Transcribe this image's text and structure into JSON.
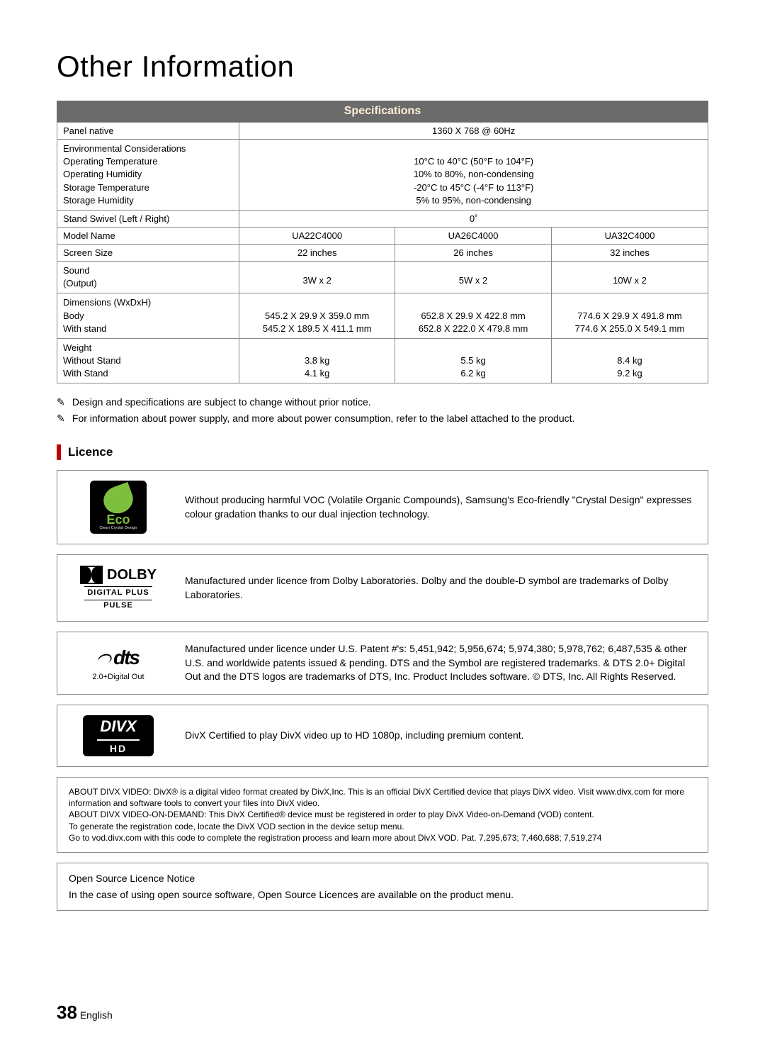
{
  "page": {
    "title": "Other Information",
    "section_header": "Specifications",
    "page_number": "38",
    "page_lang": "English"
  },
  "spec_table": {
    "rows": {
      "panel_native": {
        "label": "Panel native",
        "value": "1360 X 768 @ 60Hz"
      },
      "env": {
        "label_main": "Environmental Considerations",
        "labels": [
          "Operating Temperature",
          "Operating Humidity",
          "Storage Temperature",
          "Storage Humidity"
        ],
        "values": [
          "10°C to 40°C (50°F to 104°F)",
          "10% to 80%, non-condensing",
          "-20°C to 45°C (-4°F to 113°F)",
          "5% to 95%, non-condensing"
        ]
      },
      "swivel": {
        "label": "Stand Swivel (Left / Right)",
        "value": "0˚"
      },
      "model": {
        "label": "Model Name",
        "cols": [
          "UA22C4000",
          "UA26C4000",
          "UA32C4000"
        ]
      },
      "screen": {
        "label": "Screen Size",
        "cols": [
          "22 inches",
          "26 inches",
          "32 inches"
        ]
      },
      "sound": {
        "label_main": "Sound",
        "label_sub": "(Output)",
        "cols": [
          "3W x 2",
          "5W x 2",
          "10W x 2"
        ]
      },
      "dims": {
        "label_main": "Dimensions (WxDxH)",
        "labels": [
          "Body",
          "With stand"
        ],
        "cols": [
          [
            "545.2 X 29.9 X 359.0 mm",
            "545.2 X 189.5 X 411.1 mm"
          ],
          [
            "652.8 X 29.9 X 422.8 mm",
            "652.8 X 222.0 X 479.8 mm"
          ],
          [
            "774.6 X 29.9 X 491.8 mm",
            "774.6 X 255.0 X 549.1 mm"
          ]
        ]
      },
      "weight": {
        "label_main": "Weight",
        "labels": [
          "Without Stand",
          "With Stand"
        ],
        "cols": [
          [
            "3.8 kg",
            "4.1 kg"
          ],
          [
            "5.5 kg",
            "6.2 kg"
          ],
          [
            "8.4 kg",
            "9.2 kg"
          ]
        ]
      }
    }
  },
  "notes": {
    "icon": "✎",
    "items": [
      "Design and specifications are subject to change without prior notice.",
      "For information about power supply, and more about power consumption, refer to the label attached to the product."
    ]
  },
  "licence": {
    "heading": "Licence",
    "eco": {
      "logo_text": "Eco",
      "logo_sub": "Clean Crystal Design",
      "text": "Without producing harmful VOC (Volatile Organic Compounds), Samsung's Eco-friendly \"Crystal Design\" expresses colour gradation thanks to our dual injection technology."
    },
    "dolby": {
      "logo_line1": "DOLBY",
      "logo_line2": "DIGITAL PLUS",
      "logo_line3": "PULSE",
      "text": "Manufactured under licence from Dolby Laboratories. Dolby and the double-D symbol are trademarks of Dolby Laboratories."
    },
    "dts": {
      "logo_text": "dts",
      "logo_sub": "2.0+Digital Out",
      "text": "Manufactured under licence under U.S. Patent #'s: 5,451,942; 5,956,674; 5,974,380; 5,978,762; 6,487,535 & other U.S. and worldwide patents issued & pending. DTS and the Symbol are registered trademarks. & DTS 2.0+ Digital Out and the DTS logos are trademarks of DTS, Inc. Product Includes software. © DTS, Inc. All Rights Reserved."
    },
    "divx": {
      "logo_line1": "DIVX",
      "logo_line2": "HD",
      "text": "DivX Certified to play DivX video up to HD 1080p, including premium content."
    },
    "divx_about": {
      "l1": "ABOUT DIVX VIDEO: DivX® is a digital video format created by DivX,Inc. This is an official DivX Certified device that plays DivX video. Visit www.divx.com for more information and software tools to convert your files into DivX video.",
      "l2": "ABOUT DIVX VIDEO-ON-DEMAND: This DivX Certified® device must be registered in order to play DivX Video-on-Demand (VOD) content.",
      "l3": "To generate the registration code, locate the DivX VOD section in the device setup menu.",
      "l4": "Go to vod.divx.com with this code to complete the registration process and learn more about DivX VOD. Pat. 7,295,673; 7,460,688; 7,519,274"
    },
    "open_source": {
      "title": "Open Source Licence Notice",
      "text": "In the case of using open source software, Open Source Licences are available on the product menu."
    }
  },
  "style": {
    "header_bg": "#6b6b6b",
    "header_fg": "#ffefd5",
    "accent_bar": "#c00000",
    "border": "#888888",
    "text": "#000000",
    "eco_green": "#7fbf3f"
  }
}
